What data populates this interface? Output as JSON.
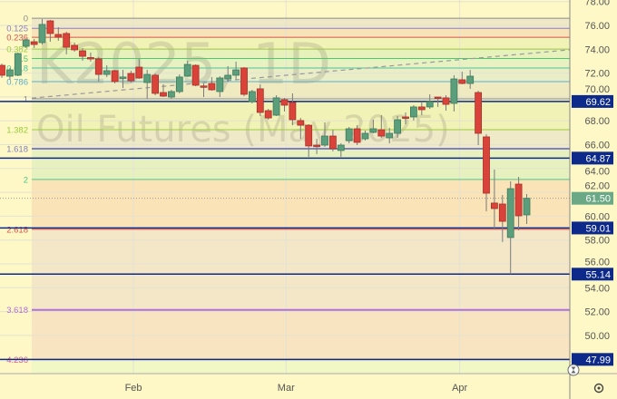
{
  "chart_data": {
    "type": "candlestick",
    "watermark": {
      "symbol": "K2025, 1D",
      "description": "Oil Futures (May 2025)"
    },
    "ylim": [
      46.5,
      78.2
    ],
    "y_ticks": [
      "78.00",
      "76.00",
      "74.00",
      "72.00",
      "70.00",
      "68.00",
      "66.00",
      "64.00",
      "62.00",
      "60.00",
      "58.00",
      "56.00",
      "54.00",
      "52.00",
      "50.00"
    ],
    "x_ticks": [
      {
        "label": "Feb",
        "candle_index": 16.3
      },
      {
        "label": "Mar",
        "candle_index": 35.2
      },
      {
        "label": "Apr",
        "candle_index": 56.7
      }
    ],
    "colors": {
      "up": "#5b9e7c",
      "down": "#d9433a",
      "price_line": "#0d2a8a",
      "last_price": "#6aa886",
      "background": "#fdf8c6"
    },
    "candles": [
      [
        72.65,
        72.8,
        71.6,
        71.82
      ],
      [
        71.74,
        72.43,
        71.44,
        72.27
      ],
      [
        71.82,
        73.72,
        71.74,
        73.64
      ],
      [
        74.25,
        74.94,
        74.1,
        74.78
      ],
      [
        74.63,
        74.86,
        74.1,
        74.4
      ],
      [
        74.56,
        76.53,
        74.4,
        76.08
      ],
      [
        76.38,
        76.45,
        74.63,
        75.32
      ],
      [
        75.24,
        75.85,
        74.71,
        75.01
      ],
      [
        75.32,
        75.47,
        73.57,
        74.17
      ],
      [
        74.33,
        74.56,
        73.8,
        73.95
      ],
      [
        73.87,
        74.1,
        73.03,
        73.41
      ],
      [
        73.3,
        73.72,
        72.96,
        73.22
      ],
      [
        73.19,
        73.34,
        71.29,
        71.89
      ],
      [
        71.89,
        72.65,
        71.67,
        72.2
      ],
      [
        72.2,
        72.27,
        71.13,
        71.29
      ],
      [
        71.6,
        72.27,
        70.75,
        71.67
      ],
      [
        71.97,
        72.2,
        71.21,
        71.36
      ],
      [
        72.5,
        73.19,
        71.51,
        71.59
      ],
      [
        71.21,
        72.27,
        69.84,
        71.89
      ],
      [
        71.82,
        71.97,
        70.14,
        70.3
      ],
      [
        70.37,
        71.06,
        69.99,
        70.07
      ],
      [
        69.99,
        70.6,
        69.84,
        70.45
      ],
      [
        70.45,
        71.89,
        70.3,
        71.67
      ],
      [
        71.74,
        73.03,
        71.67,
        72.73
      ],
      [
        72.65,
        72.73,
        70.9,
        70.98
      ],
      [
        70.92,
        71.13,
        69.99,
        70.9
      ],
      [
        71.13,
        71.67,
        70.52,
        70.6
      ],
      [
        70.45,
        71.74,
        69.99,
        71.59
      ],
      [
        71.51,
        72.58,
        71.29,
        71.82
      ],
      [
        71.82,
        72.96,
        71.44,
        72.27
      ],
      [
        72.43,
        72.5,
        70.07,
        70.22
      ],
      [
        69.61,
        70.6,
        69.46,
        70.45
      ],
      [
        70.68,
        71.06,
        68.4,
        68.7
      ],
      [
        68.85,
        69.0,
        68.09,
        68.24
      ],
      [
        68.47,
        70.14,
        68.4,
        69.92
      ],
      [
        69.76,
        69.92,
        68.78,
        69.31
      ],
      [
        69.54,
        70.3,
        67.63,
        68.09
      ],
      [
        68.02,
        68.24,
        66.49,
        67.63
      ],
      [
        67.63,
        67.71,
        64.97,
        65.89
      ],
      [
        65.96,
        66.49,
        65.2,
        65.92
      ],
      [
        65.96,
        67.86,
        65.81,
        66.72
      ],
      [
        66.72,
        67.25,
        65.43,
        65.66
      ],
      [
        65.51,
        66.11,
        64.97,
        65.96
      ],
      [
        66.34,
        67.48,
        66.11,
        67.33
      ],
      [
        67.33,
        67.63,
        65.96,
        66.19
      ],
      [
        66.49,
        67.18,
        66.34,
        66.95
      ],
      [
        67.03,
        68.09,
        66.95,
        67.33
      ],
      [
        67.25,
        68.47,
        66.57,
        66.72
      ],
      [
        66.57,
        67.41,
        66.11,
        66.95
      ],
      [
        66.95,
        68.4,
        66.57,
        68.09
      ],
      [
        68.32,
        68.7,
        67.71,
        68.24
      ],
      [
        68.32,
        69.31,
        68.02,
        69.16
      ],
      [
        69.16,
        69.61,
        68.47,
        68.93
      ],
      [
        69.16,
        70.22,
        69.0,
        69.61
      ],
      [
        69.99,
        69.99,
        69.16,
        69.95
      ],
      [
        69.92,
        70.14,
        68.85,
        69.38
      ],
      [
        69.46,
        71.82,
        68.78,
        71.51
      ],
      [
        71.44,
        72.12,
        71.06,
        71.13
      ],
      [
        71.13,
        72.27,
        70.68,
        71.74
      ],
      [
        70.37,
        70.52,
        65.96,
        66.95
      ],
      [
        66.65,
        66.87,
        60.41,
        61.93
      ],
      [
        61.1,
        63.91,
        58.89,
        60.64
      ],
      [
        61.02,
        61.78,
        57.83,
        59.57
      ],
      [
        58.21,
        62.92,
        55.14,
        62.31
      ],
      [
        62.69,
        63.3,
        58.81,
        60.03
      ],
      [
        60.11,
        61.86,
        59.35,
        61.5
      ]
    ],
    "candle_fields": [
      "open",
      "high",
      "low",
      "close"
    ],
    "fib_extension": {
      "price_at_0": 76.6,
      "price_at_1": 69.84,
      "levels": [
        {
          "label": "0",
          "value": 0,
          "color": "#8a8a8a"
        },
        {
          "label": "0.125",
          "value": 0.125,
          "color": "#8a7fc4"
        },
        {
          "label": "0.236",
          "value": 0.236,
          "color": "#d9534f"
        },
        {
          "label": "0.382",
          "value": 0.382,
          "color": "#9ccc3c"
        },
        {
          "label": "0.5",
          "value": 0.5,
          "color": "#4cc96a"
        },
        {
          "label": "0.618",
          "value": 0.618,
          "color": "#4fc49a"
        },
        {
          "label": "0.786",
          "value": 0.786,
          "color": "#5aaed0"
        },
        {
          "label": "1",
          "value": 1,
          "color": "#8a8a8a"
        },
        {
          "label": "1.382",
          "value": 1.382,
          "color": "#9ccc3c"
        },
        {
          "label": "1.618",
          "value": 1.618,
          "color": "#8080c4"
        },
        {
          "label": "2",
          "value": 2,
          "color": "#4cc98a"
        },
        {
          "label": "2.618",
          "value": 2.618,
          "color": "#e0504a"
        },
        {
          "label": "3.618",
          "value": 3.618,
          "color": "#b070d8"
        },
        {
          "label": "4.236",
          "value": 4.236,
          "color": "#d85aa0"
        }
      ]
    },
    "trend_line": {
      "start_candle": 3.7,
      "start_price": 69.9,
      "end_candle": 76,
      "end_price": 74.3,
      "style": "dashed"
    },
    "price_lines": [
      "69.62",
      "64.87",
      "59.01",
      "55.14",
      "47.99"
    ],
    "last_price": "61.50"
  }
}
